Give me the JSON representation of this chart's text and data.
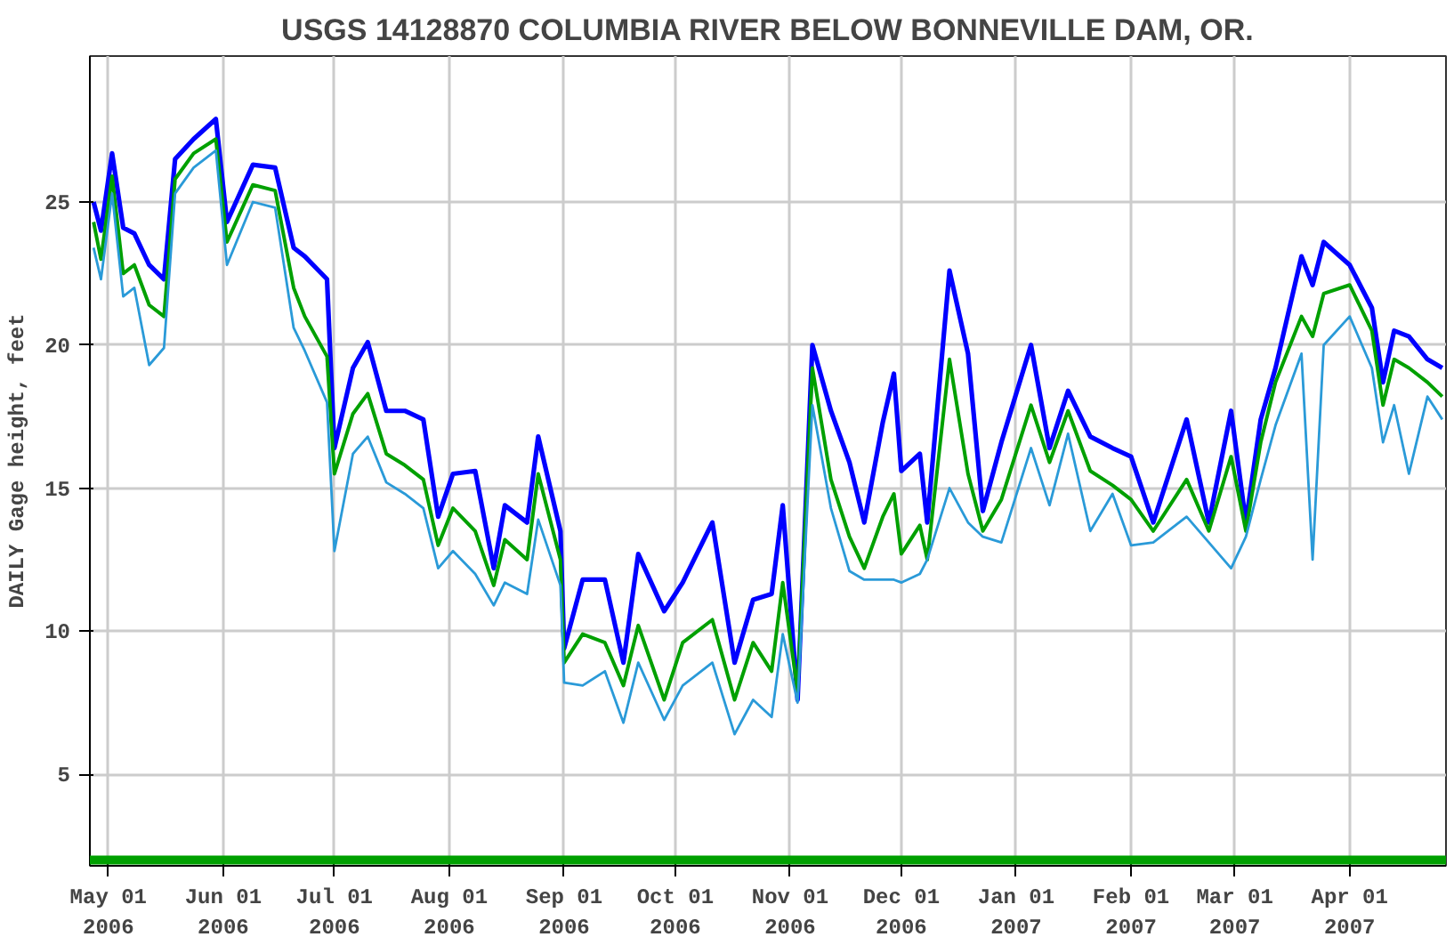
{
  "chart_data": {
    "type": "line",
    "title": "USGS 14128870 COLUMBIA RIVER BELOW BONNEVILLE DAM, OR.",
    "ylabel": "DAILY Gage height, feet",
    "x": [
      "2006-04-27",
      "2006-04-29",
      "2006-05-02",
      "2006-05-05",
      "2006-05-08",
      "2006-05-12",
      "2006-05-16",
      "2006-05-19",
      "2006-05-24",
      "2006-05-30",
      "2006-06-02",
      "2006-06-09",
      "2006-06-15",
      "2006-06-20",
      "2006-06-23",
      "2006-06-29",
      "2006-07-01",
      "2006-07-06",
      "2006-07-10",
      "2006-07-15",
      "2006-07-20",
      "2006-07-25",
      "2006-07-29",
      "2006-08-02",
      "2006-08-08",
      "2006-08-13",
      "2006-08-16",
      "2006-08-22",
      "2006-08-25",
      "2006-08-31",
      "2006-09-01",
      "2006-09-06",
      "2006-09-12",
      "2006-09-17",
      "2006-09-21",
      "2006-09-28",
      "2006-10-03",
      "2006-10-11",
      "2006-10-17",
      "2006-10-22",
      "2006-10-27",
      "2006-10-30",
      "2006-11-03",
      "2006-11-07",
      "2006-11-12",
      "2006-11-17",
      "2006-11-21",
      "2006-11-26",
      "2006-11-29",
      "2006-12-01",
      "2006-12-06",
      "2006-12-08",
      "2006-12-14",
      "2006-12-19",
      "2006-12-23",
      "2006-12-28",
      "2007-01-05",
      "2007-01-10",
      "2007-01-15",
      "2007-01-21",
      "2007-01-27",
      "2007-02-01",
      "2007-02-07",
      "2007-02-16",
      "2007-02-22",
      "2007-02-28",
      "2007-03-04",
      "2007-03-08",
      "2007-03-12",
      "2007-03-19",
      "2007-03-22",
      "2007-03-25",
      "2007-04-01",
      "2007-04-07",
      "2007-04-10",
      "2007-04-13",
      "2007-04-17",
      "2007-04-22",
      "2007-04-26"
    ],
    "series": [
      {
        "color": "#0000ff",
        "values": [
          25.0,
          24.0,
          26.7,
          24.1,
          23.9,
          22.8,
          22.3,
          26.5,
          27.2,
          27.9,
          24.3,
          26.3,
          26.2,
          23.4,
          23.1,
          22.3,
          16.4,
          19.2,
          20.1,
          17.7,
          17.7,
          17.4,
          14.0,
          15.5,
          15.6,
          12.2,
          14.4,
          13.8,
          16.8,
          13.5,
          9.4,
          11.8,
          11.8,
          8.9,
          12.7,
          10.7,
          11.7,
          13.8,
          8.9,
          11.1,
          11.3,
          14.4,
          7.6,
          20.0,
          17.7,
          15.9,
          13.8,
          17.3,
          19.0,
          15.6,
          16.2,
          13.8,
          22.6,
          19.7,
          14.2,
          16.6,
          20.0,
          16.4,
          18.4,
          16.8,
          16.4,
          16.1,
          13.8,
          17.4,
          13.8,
          17.7,
          13.8,
          17.4,
          19.2,
          23.1,
          22.1,
          23.6,
          22.8,
          21.3,
          18.7,
          20.5,
          20.3,
          19.5,
          19.2
        ]
      },
      {
        "color": "#00a000",
        "values": [
          24.3,
          23.0,
          25.9,
          22.5,
          22.8,
          21.4,
          21.0,
          25.8,
          26.7,
          27.2,
          23.6,
          25.6,
          25.4,
          22.0,
          21.0,
          19.6,
          15.5,
          17.6,
          18.3,
          16.2,
          15.8,
          15.3,
          13.0,
          14.3,
          13.5,
          11.6,
          13.2,
          12.5,
          15.5,
          12.5,
          8.9,
          9.9,
          9.6,
          8.1,
          10.2,
          7.6,
          9.6,
          10.4,
          7.6,
          9.6,
          8.6,
          11.7,
          7.9,
          19.2,
          15.3,
          13.3,
          12.2,
          14.0,
          14.8,
          12.7,
          13.7,
          12.5,
          19.5,
          15.5,
          13.5,
          14.6,
          17.9,
          15.9,
          17.7,
          15.6,
          15.1,
          14.6,
          13.5,
          15.3,
          13.5,
          16.1,
          13.5,
          16.6,
          18.7,
          21.0,
          20.3,
          21.8,
          22.1,
          20.5,
          17.9,
          19.5,
          19.2,
          18.7,
          18.2
        ]
      },
      {
        "color": "#2a9ad8",
        "values": [
          23.4,
          22.3,
          25.3,
          21.7,
          22.0,
          19.3,
          19.9,
          25.3,
          26.2,
          26.8,
          22.8,
          25.0,
          24.8,
          20.6,
          19.8,
          18.0,
          12.8,
          16.2,
          16.8,
          15.2,
          14.8,
          14.3,
          12.2,
          12.8,
          12.0,
          10.9,
          11.7,
          11.3,
          13.9,
          11.6,
          8.2,
          8.1,
          8.6,
          6.8,
          8.9,
          6.9,
          8.1,
          8.9,
          6.4,
          7.6,
          7.0,
          9.9,
          7.5,
          17.9,
          14.3,
          12.1,
          11.8,
          11.8,
          11.8,
          11.7,
          12.0,
          12.5,
          15.0,
          13.8,
          13.3,
          13.1,
          16.4,
          14.4,
          16.9,
          13.5,
          14.8,
          13.0,
          13.1,
          14.0,
          13.1,
          12.2,
          13.3,
          15.3,
          17.2,
          19.7,
          12.5,
          20.0,
          21.0,
          19.2,
          16.6,
          17.9,
          15.5,
          18.2,
          17.4
        ]
      }
    ],
    "xlim": [
      "2006-04-26",
      "2007-04-27"
    ],
    "xticks": [
      {
        "value": "2006-05-01",
        "label": "May 01\n2006"
      },
      {
        "value": "2006-06-01",
        "label": "Jun 01\n2006"
      },
      {
        "value": "2006-07-01",
        "label": "Jul 01\n2006"
      },
      {
        "value": "2006-08-01",
        "label": "Aug 01\n2006"
      },
      {
        "value": "2006-09-01",
        "label": "Sep 01\n2006"
      },
      {
        "value": "2006-10-01",
        "label": "Oct 01\n2006"
      },
      {
        "value": "2006-11-01",
        "label": "Nov 01\n2006"
      },
      {
        "value": "2006-12-01",
        "label": "Dec 01\n2006"
      },
      {
        "value": "2007-01-01",
        "label": "Jan 01\n2007"
      },
      {
        "value": "2007-02-01",
        "label": "Feb 01\n2007"
      },
      {
        "value": "2007-03-01",
        "label": "Mar 01\n2007"
      },
      {
        "value": "2007-04-01",
        "label": "Apr 01\n2007"
      }
    ],
    "ylim": [
      1.8,
      30.1
    ],
    "yticks": [
      5,
      10,
      15,
      20,
      25
    ],
    "ref_lines": [
      {
        "axis": "y",
        "value": 2.0,
        "color": "#00a000"
      }
    ],
    "grid": true,
    "line_style": "solid"
  }
}
